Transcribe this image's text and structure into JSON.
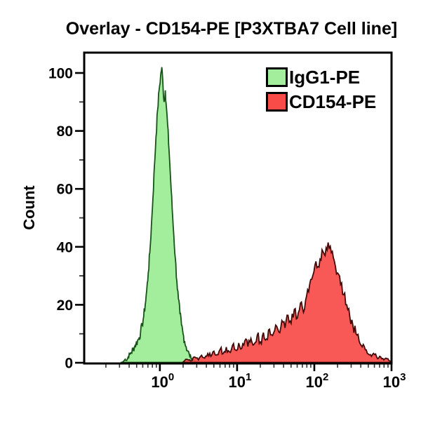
{
  "title": "Overlay - CD154-PE [P3XTBA7 Cell line]",
  "legend": {
    "items": [
      {
        "label": "IgG1-PE",
        "fill": "#a3ee9c",
        "stroke": "#175218"
      },
      {
        "label": "CD154-PE",
        "fill": "#f94c49",
        "stroke": "#420a08"
      }
    ]
  },
  "axes": {
    "y": {
      "label": "Count",
      "tick_labels": [
        "0",
        "20",
        "40",
        "60",
        "80",
        "100"
      ],
      "tick_values": [
        0,
        20,
        40,
        60,
        80,
        100
      ],
      "minor_tick_values": [
        10,
        30,
        50,
        70,
        90
      ]
    },
    "x": {
      "label": "",
      "scale": "log10",
      "tick_labels": [
        {
          "mantissa": "10",
          "exponent": "0"
        },
        {
          "mantissa": "10",
          "exponent": "1"
        },
        {
          "mantissa": "10",
          "exponent": "2"
        },
        {
          "mantissa": "10",
          "exponent": "3"
        }
      ],
      "tick_values": [
        1,
        10,
        100,
        1000
      ]
    }
  },
  "chart_data": {
    "type": "area",
    "subtype": "flow-cytometry-histogram-overlay",
    "title": "Overlay - CD154-PE [P3XTBA7 Cell line]",
    "xlabel": "",
    "ylabel": "Count",
    "x_scale": "log10",
    "xlim": [
      0.105,
      1000
    ],
    "ylim": [
      0,
      105
    ],
    "grid": false,
    "legend_position": "top-right",
    "series": [
      {
        "name": "IgG1-PE",
        "fill": "#a3ee9c",
        "stroke": "#175218",
        "fill_opacity": 1.0,
        "noise_amplitude": 1.6,
        "peak": {
          "x": 1.06,
          "count": 102
        },
        "points": [
          [
            0.316,
            0
          ],
          [
            0.339,
            0.5
          ],
          [
            0.355,
            1.2
          ],
          [
            0.372,
            0.8
          ],
          [
            0.389,
            2
          ],
          [
            0.407,
            3
          ],
          [
            0.427,
            3.5
          ],
          [
            0.447,
            4.5
          ],
          [
            0.468,
            5.5
          ],
          [
            0.49,
            6.5
          ],
          [
            0.513,
            7.5
          ],
          [
            0.537,
            8.5
          ],
          [
            0.562,
            10.5
          ],
          [
            0.589,
            13
          ],
          [
            0.617,
            16
          ],
          [
            0.646,
            20
          ],
          [
            0.676,
            25
          ],
          [
            0.708,
            31
          ],
          [
            0.741,
            38
          ],
          [
            0.776,
            47
          ],
          [
            0.813,
            57
          ],
          [
            0.851,
            68
          ],
          [
            0.891,
            78
          ],
          [
            0.933,
            87
          ],
          [
            0.977,
            94
          ],
          [
            1.023,
            99
          ],
          [
            1.059,
            102
          ],
          [
            1.096,
            96
          ],
          [
            1.135,
            90
          ],
          [
            1.175,
            94
          ],
          [
            1.216,
            88
          ],
          [
            1.259,
            82
          ],
          [
            1.318,
            73
          ],
          [
            1.38,
            63
          ],
          [
            1.445,
            53
          ],
          [
            1.514,
            44
          ],
          [
            1.585,
            36
          ],
          [
            1.66,
            28
          ],
          [
            1.738,
            22
          ],
          [
            1.82,
            17
          ],
          [
            1.905,
            13
          ],
          [
            1.995,
            10
          ],
          [
            2.089,
            7.5
          ],
          [
            2.188,
            5.5
          ],
          [
            2.291,
            4
          ],
          [
            2.399,
            3
          ],
          [
            2.512,
            2
          ],
          [
            2.63,
            1.2
          ],
          [
            2.818,
            0.6
          ],
          [
            3.02,
            0.2
          ],
          [
            3.162,
            0
          ]
        ]
      },
      {
        "name": "CD154-PE",
        "fill": "#f94c49",
        "stroke": "#420a08",
        "fill_opacity": 0.93,
        "noise_amplitude": 1.8,
        "peak": {
          "x": 151,
          "count": 41.5
        },
        "points": [
          [
            2.0,
            0.3
          ],
          [
            2.24,
            1.2
          ],
          [
            2.51,
            0.6
          ],
          [
            2.82,
            2
          ],
          [
            3.16,
            1
          ],
          [
            3.47,
            2.6
          ],
          [
            3.8,
            1.6
          ],
          [
            4.17,
            3.2
          ],
          [
            4.57,
            2.2
          ],
          [
            5.01,
            4
          ],
          [
            5.5,
            2.8
          ],
          [
            6.03,
            4.6
          ],
          [
            6.61,
            3.2
          ],
          [
            7.24,
            5.4
          ],
          [
            7.94,
            3.8
          ],
          [
            8.71,
            6
          ],
          [
            9.55,
            4.4
          ],
          [
            10.5,
            6.8
          ],
          [
            11.5,
            5
          ],
          [
            12.6,
            7.6
          ],
          [
            13.8,
            5.6
          ],
          [
            15.1,
            8.4
          ],
          [
            16.6,
            6.4
          ],
          [
            18.2,
            9.4
          ],
          [
            20,
            7.2
          ],
          [
            21.9,
            10.4
          ],
          [
            24,
            8.2
          ],
          [
            26.3,
            11.6
          ],
          [
            28.8,
            9.4
          ],
          [
            31.6,
            13
          ],
          [
            34.7,
            10.6
          ],
          [
            38,
            14.6
          ],
          [
            41.7,
            12
          ],
          [
            45.7,
            16.4
          ],
          [
            50.1,
            13.6
          ],
          [
            55,
            18.4
          ],
          [
            60.3,
            15.4
          ],
          [
            66.1,
            20.6
          ],
          [
            72.4,
            17.4
          ],
          [
            79.4,
            23
          ],
          [
            87.1,
            27
          ],
          [
            95.5,
            30
          ],
          [
            105,
            35
          ],
          [
            115,
            33
          ],
          [
            126,
            39
          ],
          [
            138,
            37
          ],
          [
            151,
            41.5
          ],
          [
            166,
            38
          ],
          [
            182,
            35
          ],
          [
            200,
            31
          ],
          [
            219,
            27
          ],
          [
            240,
            23.5
          ],
          [
            263,
            20
          ],
          [
            288,
            16
          ],
          [
            316,
            13
          ],
          [
            347,
            10
          ],
          [
            380,
            7.5
          ],
          [
            417,
            5.5
          ],
          [
            457,
            4.5
          ],
          [
            501,
            3
          ],
          [
            550,
            2.2
          ],
          [
            603,
            2.8
          ],
          [
            661,
            1.4
          ],
          [
            724,
            2
          ],
          [
            794,
            1
          ],
          [
            871,
            1.4
          ],
          [
            955,
            0.6
          ],
          [
            1000,
            0.4
          ]
        ]
      }
    ]
  }
}
